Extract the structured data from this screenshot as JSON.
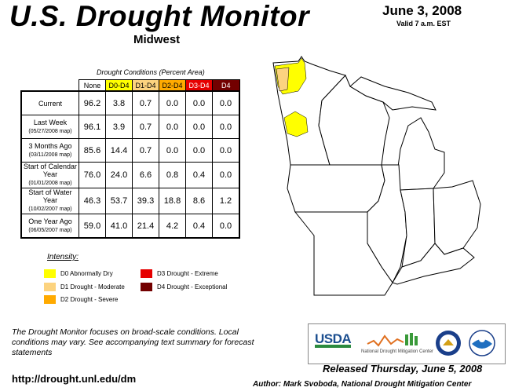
{
  "header": {
    "title": "U.S. Drought Monitor",
    "region": "Midwest",
    "date": "June 3, 2008",
    "valid": "Valid 7 a.m. EST"
  },
  "table": {
    "caption": "Drought Conditions (Percent Area)",
    "columns": [
      "None",
      "D0-D4",
      "D1-D4",
      "D2-D4",
      "D3-D4",
      "D4"
    ],
    "column_colors": [
      "#ffffff",
      "#ffff00",
      "#fcd37f",
      "#ffaa00",
      "#e60000",
      "#730000"
    ],
    "rows": [
      {
        "label": "Current",
        "sub": "",
        "values": [
          "96.2",
          "3.8",
          "0.7",
          "0.0",
          "0.0",
          "0.0"
        ]
      },
      {
        "label": "Last Week",
        "sub": "(05/27/2008 map)",
        "values": [
          "96.1",
          "3.9",
          "0.7",
          "0.0",
          "0.0",
          "0.0"
        ]
      },
      {
        "label": "3 Months Ago",
        "sub": "(03/11/2008 map)",
        "values": [
          "85.6",
          "14.4",
          "0.7",
          "0.0",
          "0.0",
          "0.0"
        ]
      },
      {
        "label": "Start of Calendar Year",
        "sub": "(01/01/2008 map)",
        "values": [
          "76.0",
          "24.0",
          "6.6",
          "0.8",
          "0.4",
          "0.0"
        ]
      },
      {
        "label": "Start of Water Year",
        "sub": "(10/02/2007 map)",
        "values": [
          "46.3",
          "53.7",
          "39.3",
          "18.8",
          "8.6",
          "1.2"
        ]
      },
      {
        "label": "One Year Ago",
        "sub": "(06/05/2007 map)",
        "values": [
          "59.0",
          "41.0",
          "21.4",
          "4.2",
          "0.4",
          "0.0"
        ]
      }
    ]
  },
  "legend": {
    "title": "Intensity:",
    "items": [
      {
        "label": "D0 Abnormally Dry",
        "color": "#ffff00"
      },
      {
        "label": "D1 Drought - Moderate",
        "color": "#fcd37f"
      },
      {
        "label": "D2 Drought - Severe",
        "color": "#ffaa00"
      },
      {
        "label": "D3 Drought - Extreme",
        "color": "#e60000"
      },
      {
        "label": "D4 Drought - Exceptional",
        "color": "#730000"
      }
    ]
  },
  "footer": {
    "note": "The Drought Monitor focuses on broad-scale conditions. Local conditions may vary. See accompanying text summary for forecast statements",
    "url": "http://drought.unl.edu/dm",
    "released": "Released Thursday, June 5, 2008",
    "author": "Author: Mark Svoboda, National Drought Mitigation Center"
  },
  "logos": {
    "usda": "USDA",
    "ndmc": "National Drought Mitigation Center"
  }
}
